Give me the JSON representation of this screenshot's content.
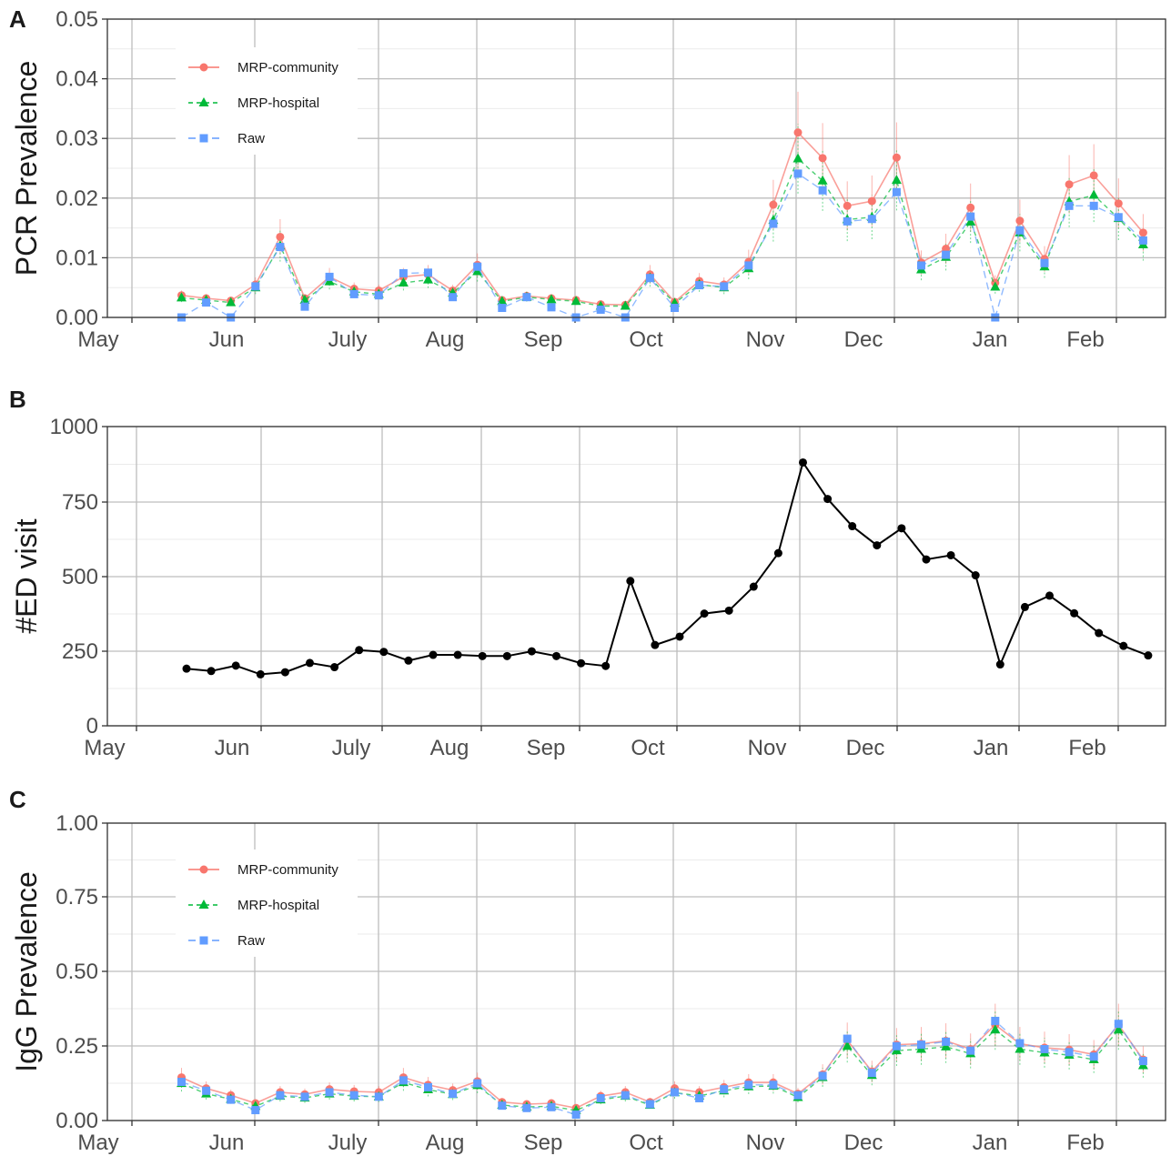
{
  "colors": {
    "community": "#F8766D",
    "hospital": "#00BA38",
    "raw": "#619CFF",
    "ed": "#000000",
    "grid_major": "#bdbdbd",
    "grid_minor": "#ebebeb",
    "panel_border": "#333333"
  },
  "x_axis": {
    "tick_labels": [
      "May",
      "Jun",
      "July",
      "Aug",
      "Sep",
      "Oct",
      "Nov",
      "Dec",
      "Jan",
      "Feb"
    ]
  },
  "chart_data": [
    {
      "type": "line",
      "panel": "A",
      "ylabel": "PCR Prevalence",
      "ylim": [
        0,
        0.05
      ],
      "ytick_labels": [
        "0.00",
        "0.01",
        "0.02",
        "0.03",
        "0.04",
        "0.05"
      ],
      "x_week": [
        1,
        2,
        3,
        4,
        5,
        6,
        7,
        8,
        9,
        10,
        11,
        12,
        13,
        14,
        15,
        16,
        17,
        18,
        19,
        20,
        21,
        22,
        23,
        24,
        25,
        26,
        27,
        28,
        29,
        30,
        31,
        32,
        33,
        34,
        35,
        36,
        37,
        38,
        39,
        40
      ],
      "legend_position": "top-left",
      "grid": true,
      "series": [
        {
          "name": "MRP-community",
          "key": "community",
          "marker": "circle",
          "values": [
            0.0037,
            0.0032,
            0.0028,
            0.0055,
            0.0135,
            0.0032,
            0.0068,
            0.0048,
            0.0045,
            0.0068,
            0.0072,
            0.0045,
            0.0088,
            0.0029,
            0.0036,
            0.0032,
            0.0029,
            0.0022,
            0.0021,
            0.0072,
            0.0026,
            0.0061,
            0.0055,
            0.0093,
            0.0189,
            0.031,
            0.0267,
            0.0187,
            0.0195,
            0.0268,
            0.0092,
            0.0115,
            0.0184,
            0.0058,
            0.0162,
            0.0098,
            0.0223,
            0.0238,
            0.0191,
            0.0142
          ]
        },
        {
          "name": "MRP-hospital",
          "key": "hospital",
          "marker": "triangle",
          "values": [
            0.0033,
            0.0029,
            0.0025,
            0.005,
            0.012,
            0.0029,
            0.006,
            0.0043,
            0.0039,
            0.0058,
            0.0063,
            0.0041,
            0.0077,
            0.0027,
            0.0034,
            0.003,
            0.0027,
            0.0019,
            0.0019,
            0.0066,
            0.0024,
            0.0055,
            0.005,
            0.0082,
            0.0163,
            0.0266,
            0.0229,
            0.0164,
            0.0168,
            0.023,
            0.008,
            0.0101,
            0.016,
            0.0051,
            0.0142,
            0.0085,
            0.0194,
            0.0205,
            0.0166,
            0.0122
          ]
        },
        {
          "name": "Raw",
          "key": "raw",
          "marker": "square",
          "values": [
            0.0,
            0.0025,
            0.0,
            0.0052,
            0.0118,
            0.0018,
            0.0068,
            0.0039,
            0.0037,
            0.0074,
            0.0075,
            0.0034,
            0.0085,
            0.0016,
            0.0034,
            0.0017,
            0.0,
            0.0013,
            0.0,
            0.0066,
            0.0016,
            0.0054,
            0.0052,
            0.0087,
            0.0157,
            0.0241,
            0.0213,
            0.0161,
            0.0165,
            0.021,
            0.0087,
            0.0105,
            0.0169,
            0.0,
            0.0146,
            0.0091,
            0.0187,
            0.0187,
            0.0168,
            0.0129
          ]
        }
      ]
    },
    {
      "type": "line",
      "panel": "B",
      "ylabel": "#ED visit",
      "ylim": [
        0,
        1000
      ],
      "ytick_labels": [
        "0",
        "250",
        "500",
        "750",
        "1000"
      ],
      "x_week": [
        1,
        2,
        3,
        4,
        5,
        6,
        7,
        8,
        9,
        10,
        11,
        12,
        13,
        14,
        15,
        16,
        17,
        18,
        19,
        20,
        21,
        22,
        23,
        24,
        25,
        26,
        27,
        28,
        29,
        30,
        31,
        32,
        33,
        34,
        35,
        36,
        37,
        38,
        39,
        40
      ],
      "grid": true,
      "series": [
        {
          "key": "ed",
          "values": [
            191,
            183,
            201,
            172,
            179,
            210,
            196,
            253,
            247,
            218,
            237,
            237,
            233,
            233,
            249,
            233,
            209,
            200,
            484,
            270,
            298,
            375,
            385,
            465,
            577,
            880,
            758,
            667,
            603,
            660,
            556,
            570,
            503,
            205,
            397,
            435,
            376,
            310,
            267,
            235
          ]
        }
      ]
    },
    {
      "type": "line",
      "panel": "C",
      "ylabel": "IgG Prevalence",
      "ylim": [
        0,
        1
      ],
      "ytick_labels": [
        "0.00",
        "0.25",
        "0.50",
        "0.75",
        "1.00"
      ],
      "x_week": [
        1,
        2,
        3,
        4,
        5,
        6,
        7,
        8,
        9,
        10,
        11,
        12,
        13,
        14,
        15,
        16,
        17,
        18,
        19,
        20,
        21,
        22,
        23,
        24,
        25,
        26,
        27,
        28,
        29,
        30,
        31,
        32,
        33,
        34,
        35,
        36,
        37,
        38,
        39,
        40
      ],
      "legend_position": "top-left",
      "grid": true,
      "series": [
        {
          "name": "MRP-community",
          "key": "community",
          "marker": "circle",
          "values": [
            0.145,
            0.108,
            0.085,
            0.058,
            0.095,
            0.088,
            0.105,
            0.098,
            0.095,
            0.145,
            0.12,
            0.102,
            0.132,
            0.062,
            0.055,
            0.058,
            0.042,
            0.082,
            0.095,
            0.062,
            0.108,
            0.095,
            0.112,
            0.128,
            0.128,
            0.09,
            0.155,
            0.27,
            0.165,
            0.255,
            0.258,
            0.268,
            0.24,
            0.322,
            0.258,
            0.245,
            0.238,
            0.222,
            0.322,
            0.205
          ]
        },
        {
          "name": "MRP-hospital",
          "key": "hospital",
          "marker": "triangle",
          "values": [
            0.125,
            0.09,
            0.072,
            0.048,
            0.082,
            0.076,
            0.09,
            0.082,
            0.08,
            0.128,
            0.104,
            0.088,
            0.118,
            0.052,
            0.046,
            0.048,
            0.034,
            0.07,
            0.082,
            0.052,
            0.094,
            0.083,
            0.1,
            0.114,
            0.116,
            0.078,
            0.145,
            0.25,
            0.152,
            0.235,
            0.24,
            0.248,
            0.225,
            0.305,
            0.24,
            0.228,
            0.22,
            0.205,
            0.305,
            0.185
          ]
        },
        {
          "name": "Raw",
          "key": "raw",
          "marker": "square",
          "values": [
            0.13,
            0.1,
            0.07,
            0.035,
            0.085,
            0.08,
            0.095,
            0.085,
            0.08,
            0.135,
            0.112,
            0.09,
            0.125,
            0.05,
            0.042,
            0.045,
            0.02,
            0.075,
            0.085,
            0.055,
            0.095,
            0.075,
            0.105,
            0.12,
            0.12,
            0.085,
            0.15,
            0.275,
            0.16,
            0.25,
            0.255,
            0.265,
            0.235,
            0.335,
            0.26,
            0.24,
            0.23,
            0.215,
            0.325,
            0.2
          ]
        }
      ]
    }
  ],
  "figure": {
    "panel_tags": [
      "A",
      "B",
      "C"
    ]
  }
}
